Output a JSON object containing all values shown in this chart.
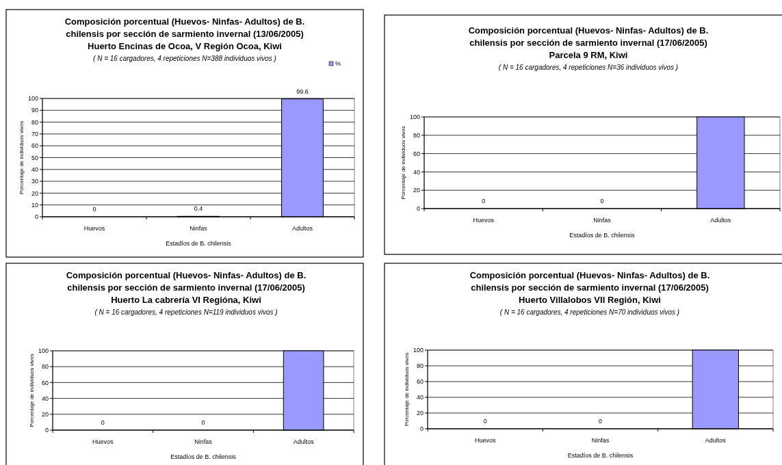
{
  "chart_data": [
    {
      "type": "bar",
      "title": "Composición porcentual  (Huevos- Ninfas- Adultos) de B.\nchilensis por sección de sarmiento invernal (13/06/2005)\nHuerto Encinas de Ocoa, V Región Ocoa, Kiwi",
      "subtitle": "( N = 16 cargadores, 4 repeticiones N=388 individuos vivos )",
      "xlabel": "Estadíos de B. chilensis",
      "ylabel": "Porcentaje de individuos vivos",
      "categories": [
        "Huevos",
        "Ninfas",
        "Adultos"
      ],
      "series": [
        {
          "name": "%",
          "color": "#9999ff",
          "values": [
            0,
            0.4,
            99.6
          ]
        }
      ],
      "ylim": [
        0,
        100
      ],
      "yticks": [
        0,
        10,
        20,
        30,
        40,
        50,
        60,
        70,
        80,
        90,
        100
      ],
      "grid": "y",
      "legend": "top right",
      "data_labels": true
    },
    {
      "type": "bar",
      "title": "Composición porcentual  (Huevos- Ninfas- Adultos) de B.\nchilensis por sección de sarmiento invernal (17/06/2005)\nParcela 9 RM, Kiwi",
      "subtitle": "( N = 16 cargadores, 4 repeticiones N=36 individuos vivos )",
      "xlabel": "Estadíos de B. chilensis",
      "ylabel": "Porcentaje de individuos vivos",
      "categories": [
        "Huevos",
        "Ninfas",
        "Adultos"
      ],
      "series": [
        {
          "color": "#9999ff",
          "values": [
            0,
            0,
            100
          ],
          "value_labels": [
            "0",
            "0",
            null
          ]
        }
      ],
      "ylim": [
        0,
        100
      ],
      "yticks": [
        0,
        20,
        40,
        60,
        80,
        100
      ],
      "grid": "y"
    },
    {
      "type": "bar",
      "title": "Composición porcentual  (Huevos- Ninfas- Adultos) de B.\nchilensis por sección de sarmiento invernal (17/06/2005)\nHuerto La cabrería VI Regióna, Kiwi",
      "subtitle": "( N = 16 cargadores, 4 repeticiones N=119 individuos vivos )",
      "xlabel": "Estadíos de B. chilensis",
      "ylabel": "Porcentaje de individuos vivos",
      "categories": [
        "Huevos",
        "Ninfas",
        "Adultos"
      ],
      "series": [
        {
          "color": "#9999ff",
          "values": [
            0,
            0,
            100
          ],
          "value_labels": [
            "0",
            "0",
            null
          ]
        }
      ],
      "ylim": [
        0,
        100
      ],
      "yticks": [
        0,
        20,
        40,
        60,
        80,
        100
      ],
      "grid": "y"
    },
    {
      "type": "bar",
      "title": "Composición porcentual  (Huevos- Ninfas- Adultos) de B.\nchilensis por sección de sarmiento invernal (17/06/2005)\nHuerto Villalobos VII Región, Kiwi",
      "subtitle": "( N = 16 cargadores, 4 repeticiones N=70 individuos vivos )",
      "xlabel": "Estadíos de B. chilensis",
      "ylabel": "Porcentaje de individuos vivos",
      "categories": [
        "Huevos",
        "Ninfas",
        "Adultos"
      ],
      "series": [
        {
          "color": "#9999ff",
          "values": [
            0,
            0,
            100
          ],
          "value_labels": [
            "0",
            "0",
            null
          ]
        }
      ],
      "ylim": [
        0,
        100
      ],
      "yticks": [
        0,
        20,
        40,
        60,
        80,
        100
      ],
      "grid": "y"
    }
  ]
}
